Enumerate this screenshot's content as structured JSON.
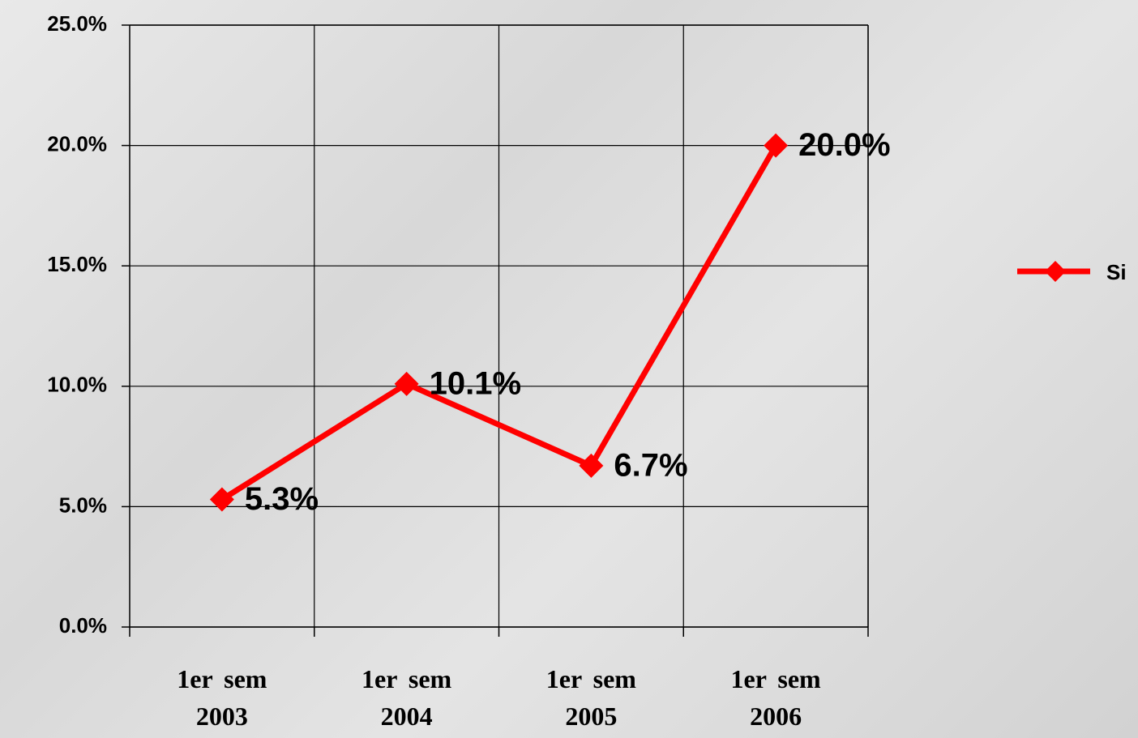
{
  "chart_data": {
    "type": "line",
    "categories": [
      "1er sem 2003",
      "1er sem 2004",
      "1er sem 2005",
      "1er sem 2006"
    ],
    "series": [
      {
        "name": "Si",
        "color": "#ff0000",
        "values": [
          5.3,
          10.1,
          6.7,
          20.0
        ],
        "value_labels": [
          "5.3%",
          "10.1%",
          "6.7%",
          "20.0%"
        ]
      }
    ],
    "ylim": [
      0,
      25
    ],
    "yticks": [
      {
        "value": 0,
        "label": "0.0%"
      },
      {
        "value": 5,
        "label": "5.0%"
      },
      {
        "value": 10,
        "label": "10.0%"
      },
      {
        "value": 15,
        "label": "15.0%"
      },
      {
        "value": 20,
        "label": "20.0%"
      },
      {
        "value": 25,
        "label": "25.0%"
      }
    ],
    "grid": true,
    "legend": "right"
  }
}
